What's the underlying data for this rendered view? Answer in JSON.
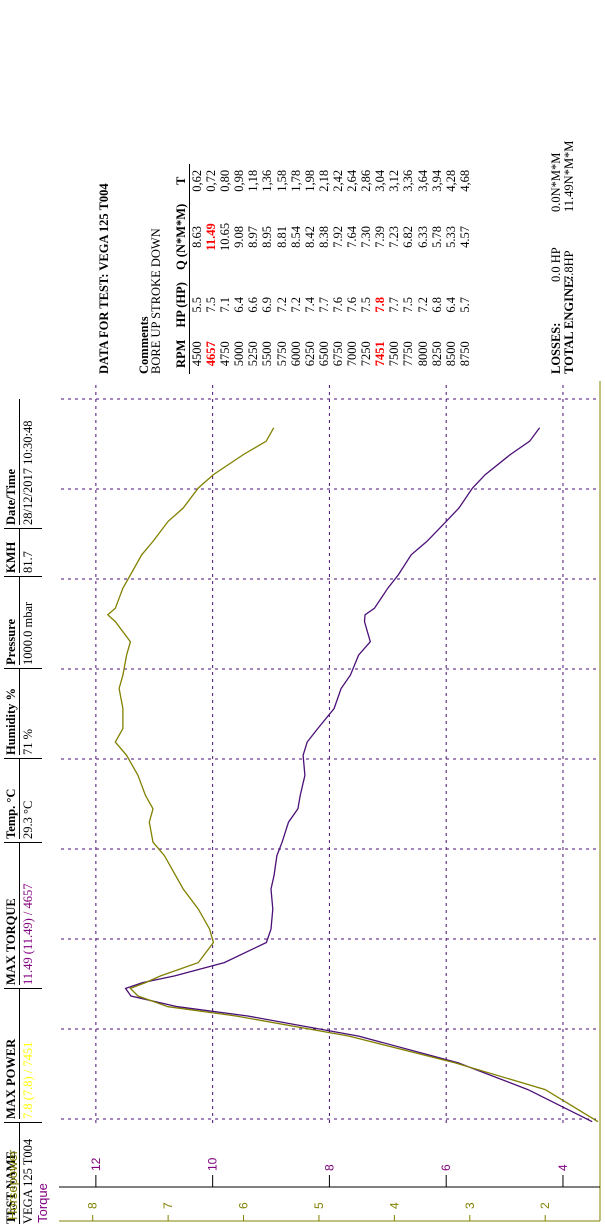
{
  "header": {
    "columns": [
      {
        "name": "TEST NAME",
        "value": "VEGA 125 T004",
        "color": "#000000"
      },
      {
        "name": "MAX POWER",
        "value": "7.8 (7.8) / 7451",
        "color": "#ffff00"
      },
      {
        "name": "MAX TORQUE",
        "value": "11.49 (11.49) / 4657",
        "color": "#800080"
      },
      {
        "name": "Temp. °C",
        "value": "29.3 °C",
        "color": "#000000"
      },
      {
        "name": "Humidity %",
        "value": "71 %",
        "color": "#000000"
      },
      {
        "name": "Pressure",
        "value": "1000.0 mbar",
        "color": "#000000"
      },
      {
        "name": "KMH",
        "value": "81.7",
        "color": "#000000"
      },
      {
        "name": "Date/Time",
        "value": "28/12/2017 10:30:48",
        "color": "#000000"
      }
    ]
  },
  "data_section": {
    "title": "DATA FOR TEST: VEGA 125 T004",
    "comments_label": "Comments",
    "comments_text": "BORE UP STROKE DOWN",
    "columns": [
      "RPM",
      "HP (HP)",
      "Q (N*M*M)",
      "T"
    ],
    "rows": [
      [
        "4500",
        "5.5",
        "8.63",
        "0,62"
      ],
      [
        "4657",
        "7.5",
        "11.49",
        "0,72"
      ],
      [
        "4750",
        "7.1",
        "10.65",
        "0,80"
      ],
      [
        "5000",
        "6.4",
        "9.08",
        "0,98"
      ],
      [
        "5250",
        "6.6",
        "8.97",
        "1,18"
      ],
      [
        "5500",
        "6.9",
        "8.95",
        "1,36"
      ],
      [
        "5750",
        "7.2",
        "8.81",
        "1,58"
      ],
      [
        "6000",
        "7.2",
        "8.54",
        "1,78"
      ],
      [
        "6250",
        "7.4",
        "8.42",
        "1,98"
      ],
      [
        "6500",
        "7.7",
        "8.38",
        "2,18"
      ],
      [
        "6750",
        "7.6",
        "7.92",
        "2,42"
      ],
      [
        "7000",
        "7.6",
        "7.64",
        "2,64"
      ],
      [
        "7250",
        "7.5",
        "7.30",
        "2,86"
      ],
      [
        "7451",
        "7.8",
        "7.39",
        "3,04"
      ],
      [
        "7500",
        "7.7",
        "7.23",
        "3,12"
      ],
      [
        "7750",
        "7.5",
        "6.82",
        "3,36"
      ],
      [
        "8000",
        "7.2",
        "6.33",
        "3,64"
      ],
      [
        "8250",
        "6.8",
        "5.78",
        "3,94"
      ],
      [
        "8500",
        "6.4",
        "5.33",
        "4,28"
      ],
      [
        "8750",
        "5.7",
        "4.57",
        "4,68"
      ]
    ],
    "highlight": [
      {
        "row": 1,
        "col": 0
      },
      {
        "row": 1,
        "col": 2
      },
      {
        "row": 13,
        "col": 0
      },
      {
        "row": 13,
        "col": 1
      }
    ],
    "highlight_color": "#ff0000",
    "losses_label": "LOSSES:",
    "losses_hp": "0.0 HP",
    "losses_torque": "0.0N*M*M",
    "total_label": "TOTAL ENGINE:",
    "total_hp": "7.8HP",
    "total_torque": "11.49N*M*M"
  },
  "chart_data": {
    "type": "line",
    "xlabel": "",
    "xlim": [
      3650,
      9200
    ],
    "grid": true,
    "axes": [
      {
        "label": "Torque",
        "ticks": [
          "4",
          "6",
          "8",
          "10",
          "12"
        ],
        "ylim": [
          3.4,
          12.7
        ],
        "color": "#800080"
      },
      {
        "label": "Horsepower",
        "ticks": [
          "2",
          "3",
          "4",
          "5",
          "6",
          "7",
          "8"
        ],
        "ylim": [
          1.3,
          8.5
        ],
        "color": "#808000"
      }
    ],
    "series": [
      {
        "axis": "Torque",
        "color": "#4b0f78",
        "x": [
          3660,
          3900,
          4100,
          4300,
          4450,
          4520,
          4600,
          4657,
          4700,
          4750,
          4850,
          5000,
          5100,
          5250,
          5400,
          5500,
          5650,
          5750,
          5900,
          6000,
          6100,
          6250,
          6400,
          6500,
          6600,
          6750,
          6900,
          7000,
          7150,
          7250,
          7400,
          7451,
          7500,
          7650,
          7750,
          7900,
          8000,
          8150,
          8250,
          8400,
          8500,
          8650,
          8750,
          8850
        ],
        "y": [
          3.5,
          4.6,
          5.8,
          7.5,
          9.4,
          10.6,
          11.4,
          11.49,
          11.2,
          10.65,
          9.8,
          9.08,
          9.0,
          8.97,
          9.0,
          8.95,
          8.9,
          8.81,
          8.7,
          8.54,
          8.5,
          8.42,
          8.45,
          8.38,
          8.2,
          7.92,
          7.8,
          7.64,
          7.5,
          7.3,
          7.4,
          7.39,
          7.23,
          7.0,
          6.82,
          6.6,
          6.33,
          6.0,
          5.78,
          5.55,
          5.33,
          4.9,
          4.57,
          4.4
        ]
      },
      {
        "axis": "Horsepower",
        "color": "#808000",
        "x": [
          3660,
          3900,
          4100,
          4300,
          4450,
          4520,
          4600,
          4657,
          4700,
          4750,
          4850,
          5000,
          5100,
          5250,
          5400,
          5500,
          5650,
          5750,
          5900,
          6000,
          6100,
          6250,
          6400,
          6500,
          6600,
          6750,
          6900,
          7000,
          7150,
          7250,
          7400,
          7451,
          7500,
          7650,
          7750,
          7900,
          8000,
          8150,
          8250,
          8400,
          8500,
          8650,
          8750,
          8850
        ],
        "y": [
          1.3,
          2.0,
          3.2,
          4.6,
          6.1,
          7.0,
          7.4,
          7.5,
          7.3,
          7.1,
          6.6,
          6.4,
          6.45,
          6.6,
          6.8,
          6.9,
          7.05,
          7.2,
          7.25,
          7.2,
          7.3,
          7.4,
          7.55,
          7.7,
          7.6,
          7.6,
          7.65,
          7.6,
          7.55,
          7.5,
          7.7,
          7.8,
          7.7,
          7.6,
          7.5,
          7.35,
          7.2,
          7.0,
          6.8,
          6.6,
          6.4,
          6.0,
          5.7,
          5.6
        ]
      }
    ]
  }
}
